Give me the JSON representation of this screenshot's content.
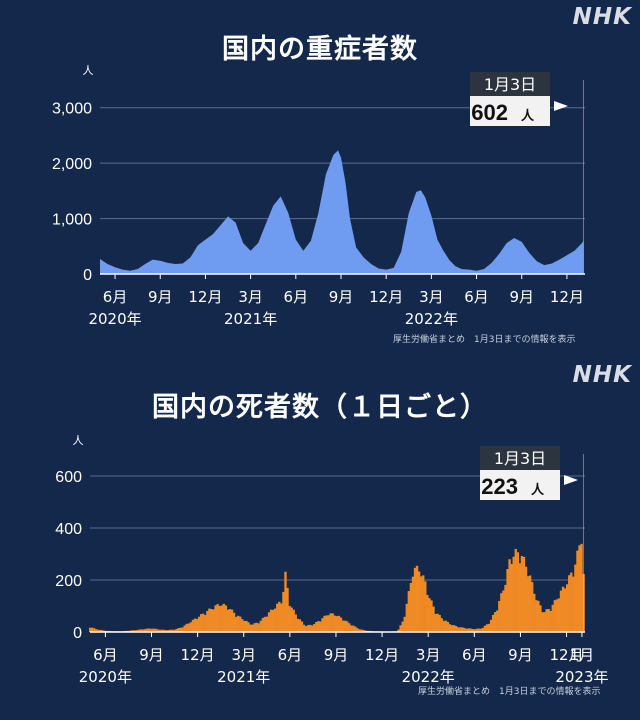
{
  "logo": "NHK",
  "source_note": "厚生労働省まとめ　1月3日までの情報を表示",
  "chart_data": [
    {
      "type": "area",
      "title": "国内の重症者数",
      "ylabel": "人",
      "ylim": [
        0,
        3500
      ],
      "yticks": [
        "0",
        "1,000",
        "2,000",
        "3,000"
      ],
      "ytick_values": [
        0,
        1000,
        2000,
        3000
      ],
      "color": "#6f9cf0",
      "xlim": [
        0,
        32.2
      ],
      "xticks": [
        {
          "label": "6月",
          "year": "2020年",
          "x": 1
        },
        {
          "label": "9月",
          "x": 4
        },
        {
          "label": "12月",
          "x": 7
        },
        {
          "label": "3月",
          "year": "2021年",
          "x": 10
        },
        {
          "label": "6月",
          "x": 13
        },
        {
          "label": "9月",
          "x": 16
        },
        {
          "label": "12月",
          "x": 19
        },
        {
          "label": "3月",
          "year": "2022年",
          "x": 22
        },
        {
          "label": "6月",
          "x": 25
        },
        {
          "label": "9月",
          "x": 28
        },
        {
          "label": "12月",
          "x": 31
        }
      ],
      "callout": {
        "date": "1月3日",
        "value": "602",
        "unit": "人"
      },
      "x": [
        0,
        0.5,
        1,
        1.5,
        2,
        2.5,
        3,
        3.5,
        4,
        4.5,
        5,
        5.5,
        6,
        6.5,
        7,
        7.5,
        8,
        8.5,
        9,
        9.5,
        10,
        10.5,
        11,
        11.5,
        12,
        12.5,
        13,
        13.5,
        14,
        14.5,
        15,
        15.5,
        15.8,
        16,
        16.3,
        16.6,
        17,
        17.5,
        18,
        18.5,
        19,
        19.5,
        20,
        20.5,
        21,
        21.3,
        21.6,
        22,
        22.4,
        22.8,
        23.2,
        23.6,
        24,
        24.5,
        25,
        25.5,
        26,
        26.5,
        27,
        27.5,
        28,
        28.5,
        29,
        29.5,
        30,
        30.5,
        31,
        31.5,
        32,
        32.1
      ],
      "values": [
        270,
        180,
        120,
        80,
        60,
        90,
        180,
        260,
        240,
        200,
        180,
        190,
        300,
        520,
        620,
        720,
        880,
        1040,
        930,
        560,
        420,
        560,
        900,
        1230,
        1400,
        1100,
        620,
        420,
        600,
        1100,
        1800,
        2150,
        2230,
        2100,
        1650,
        1000,
        480,
        300,
        180,
        100,
        80,
        110,
        400,
        1100,
        1480,
        1510,
        1380,
        1050,
        620,
        420,
        250,
        140,
        90,
        80,
        60,
        90,
        200,
        360,
        560,
        650,
        580,
        380,
        230,
        160,
        190,
        260,
        340,
        420,
        560,
        600
      ]
    },
    {
      "type": "bar",
      "title": "国内の死者数（１日ごと）",
      "ylabel": "人",
      "ylim": [
        0,
        700
      ],
      "yticks": [
        "0",
        "200",
        "400",
        "600"
      ],
      "ytick_values": [
        0,
        200,
        400,
        600
      ],
      "color": "#f08a24",
      "xlim": [
        0,
        32.2
      ],
      "xticks": [
        {
          "label": "6月",
          "year": "2020年",
          "x": 1
        },
        {
          "label": "9月",
          "x": 4
        },
        {
          "label": "12月",
          "x": 7
        },
        {
          "label": "3月",
          "year": "2021年",
          "x": 10
        },
        {
          "label": "6月",
          "x": 13
        },
        {
          "label": "9月",
          "x": 16
        },
        {
          "label": "12月",
          "x": 19
        },
        {
          "label": "3月",
          "year": "2022年",
          "x": 22
        },
        {
          "label": "6月",
          "x": 25
        },
        {
          "label": "9月",
          "x": 28
        },
        {
          "label": "12月",
          "x": 31
        },
        {
          "label": "1月",
          "year": "2023年",
          "x": 32
        }
      ],
      "callout": {
        "date": "1月3日",
        "value": "223",
        "unit": "人"
      },
      "x": [
        0,
        0.5,
        1,
        1.5,
        2,
        2.5,
        3,
        3.5,
        4,
        4.5,
        5,
        5.5,
        6,
        6.5,
        7,
        7.5,
        8,
        8.5,
        9,
        9.5,
        10,
        10.5,
        11,
        11.5,
        12,
        12.5,
        12.7,
        13,
        13.5,
        14,
        14.5,
        15,
        15.5,
        16,
        16.5,
        17,
        17.5,
        18,
        18.5,
        19,
        19.5,
        20,
        20.4,
        20.8,
        21,
        21.4,
        21.8,
        22,
        22.5,
        23,
        23.5,
        24,
        24.5,
        25,
        25.5,
        26,
        26.5,
        27,
        27.3,
        27.6,
        28,
        28.5,
        29,
        29.5,
        30,
        30.5,
        31,
        31.5,
        31.8,
        32,
        32.1
      ],
      "values": [
        20,
        10,
        5,
        3,
        3,
        5,
        8,
        12,
        15,
        10,
        8,
        10,
        20,
        40,
        60,
        80,
        100,
        115,
        100,
        70,
        50,
        30,
        40,
        70,
        100,
        130,
        235,
        110,
        60,
        25,
        30,
        50,
        75,
        70,
        50,
        30,
        12,
        5,
        3,
        2,
        2,
        3,
        50,
        180,
        250,
        260,
        200,
        150,
        80,
        50,
        30,
        20,
        15,
        12,
        15,
        40,
        100,
        200,
        290,
        320,
        320,
        250,
        140,
        80,
        100,
        150,
        200,
        260,
        340,
        420,
        223
      ]
    }
  ]
}
